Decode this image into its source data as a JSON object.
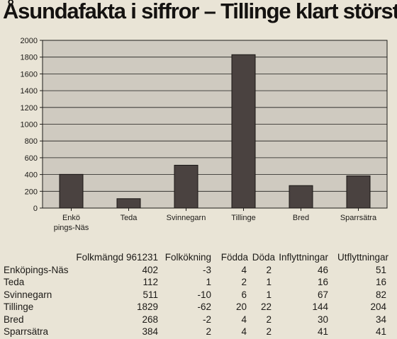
{
  "headline": "Åsundafakta i siffror – Tillinge klart störst",
  "chart_data": {
    "type": "bar",
    "categories": [
      "Enkö pings-Näs",
      "Teda",
      "Svinnegarn",
      "Tillinge",
      "Bred",
      "Sparrsätra"
    ],
    "category_lines": [
      [
        "Enkö",
        "pings-Näs"
      ],
      [
        "Teda"
      ],
      [
        "Svinnegarn"
      ],
      [
        "Tillinge"
      ],
      [
        "Bred"
      ],
      [
        "Sparrsätra"
      ]
    ],
    "values": [
      402,
      112,
      511,
      1829,
      268,
      384
    ],
    "yticks": [
      0,
      200,
      400,
      600,
      800,
      1000,
      1200,
      1400,
      1600,
      1800,
      2000
    ],
    "ylim": [
      0,
      2000
    ],
    "grid": true,
    "colors": {
      "bar": "#4a4240",
      "plot_bg": "#cfcac0",
      "grid": "#1e1c1a"
    }
  },
  "table": {
    "headers": [
      "Folkmängd 961231",
      "Folkökning",
      "Födda",
      "Döda",
      "Inflyttningar",
      "Utflyttningar"
    ],
    "rows": [
      {
        "name": "Enköpings-Näs",
        "folkmangd": "402",
        "folkokning": "-3",
        "fodda": "4",
        "doda": "2",
        "inflyttningar": "46",
        "utflyttningar": "51"
      },
      {
        "name": "Teda",
        "folkmangd": "112",
        "folkokning": "1",
        "fodda": "2",
        "doda": "1",
        "inflyttningar": "16",
        "utflyttningar": "16"
      },
      {
        "name": "Svinnegarn",
        "folkmangd": "511",
        "folkokning": "-10",
        "fodda": "6",
        "doda": "1",
        "inflyttningar": "67",
        "utflyttningar": "82"
      },
      {
        "name": "Tillinge",
        "folkmangd": "1829",
        "folkokning": "-62",
        "fodda": "20",
        "doda": "22",
        "inflyttningar": "144",
        "utflyttningar": "204"
      },
      {
        "name": "Bred",
        "folkmangd": "268",
        "folkokning": "-2",
        "fodda": "4",
        "doda": "2",
        "inflyttningar": "30",
        "utflyttningar": "34"
      },
      {
        "name": "Sparrsätra",
        "folkmangd": "384",
        "folkokning": "2",
        "fodda": "4",
        "doda": "2",
        "inflyttningar": "41",
        "utflyttningar": "41"
      }
    ]
  }
}
